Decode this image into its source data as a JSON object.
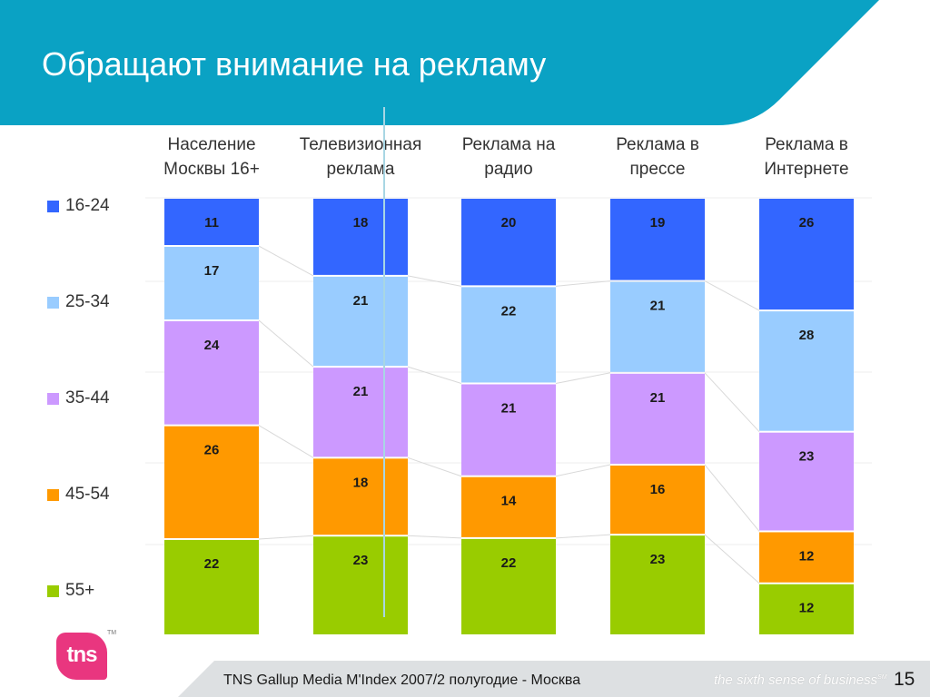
{
  "title": "Обращают внимание на рекламу",
  "colors": {
    "header": "#0aa2c4",
    "footer": "#dde0e2",
    "series": [
      "#3366ff",
      "#99ccff",
      "#cc99ff",
      "#ff9900",
      "#99cc00"
    ]
  },
  "chart_data": {
    "type": "bar",
    "stacked": true,
    "categories": [
      [
        "Население",
        "Москвы 16+"
      ],
      [
        "Телевизионная",
        "реклама"
      ],
      [
        "Реклама на",
        "радио"
      ],
      [
        "Реклама в",
        "прессе"
      ],
      [
        "Реклама в",
        "Интернете"
      ]
    ],
    "series": [
      {
        "name": "16-24",
        "values": [
          11,
          18,
          20,
          19,
          26
        ]
      },
      {
        "name": "25-34",
        "values": [
          17,
          21,
          22,
          21,
          28
        ]
      },
      {
        "name": "35-44",
        "values": [
          24,
          21,
          21,
          21,
          23
        ]
      },
      {
        "name": "45-54",
        "values": [
          26,
          18,
          14,
          16,
          12
        ]
      },
      {
        "name": "55+",
        "values": [
          22,
          23,
          22,
          23,
          12
        ]
      }
    ],
    "legend_position": "left",
    "grid": false
  },
  "footer": {
    "source": "TNS Gallup Media M'Index 2007/2 полугодие - Москва",
    "tagline": "the sixth sense of business",
    "tagline_tm": "SM",
    "page": "15"
  },
  "logo": {
    "text": "tns",
    "tm": "TM"
  }
}
